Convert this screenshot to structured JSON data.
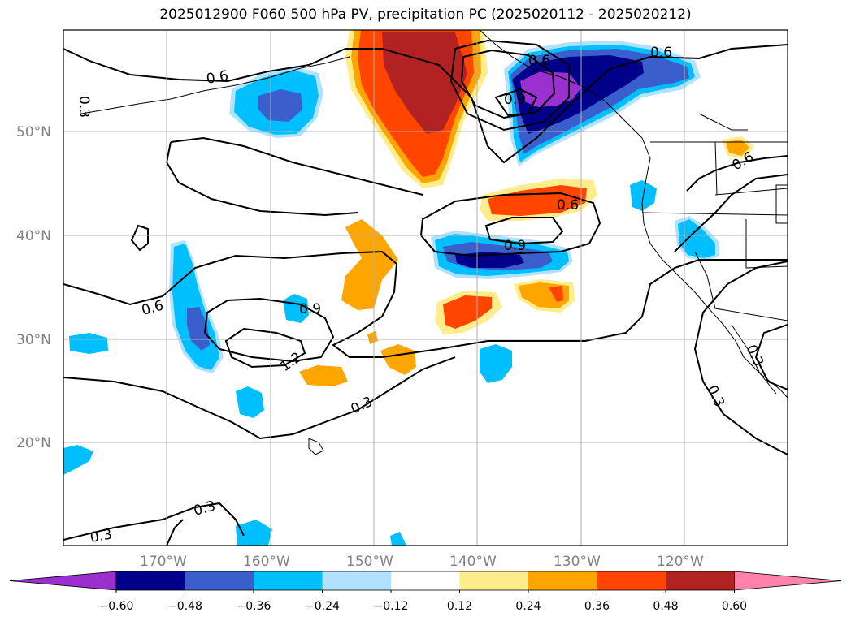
{
  "title": "2025012900 F060 500 hPa PV, precipitation PC (2025020112 - 2025020212)",
  "lat_labels": [
    "50°N",
    "40°N",
    "30°N",
    "20°N"
  ],
  "lon_labels": [
    "170°W",
    "160°W",
    "150°W",
    "140°W",
    "130°W",
    "120°W"
  ],
  "contour_labels": [
    "0.3",
    "0.6",
    "0.6",
    "0.6",
    "0.9",
    "0.9",
    "1.2",
    "0.3",
    "0.3",
    "0.3",
    "0.3",
    "0.3",
    "0.6",
    "0.6",
    "0.6",
    "0.9"
  ],
  "colorbar": {
    "ticks": [
      "−0.60",
      "−0.48",
      "−0.36",
      "−0.24",
      "−0.12",
      "0.12",
      "0.24",
      "0.36",
      "0.48",
      "0.60"
    ],
    "colors": [
      "#9b30d0",
      "#00008b",
      "#3a5fcd",
      "#00bfff",
      "#b0e2ff",
      "#ffffff",
      "#ffec8b",
      "#ffa500",
      "#ff4500",
      "#b22222",
      "#ff82ab"
    ]
  }
}
